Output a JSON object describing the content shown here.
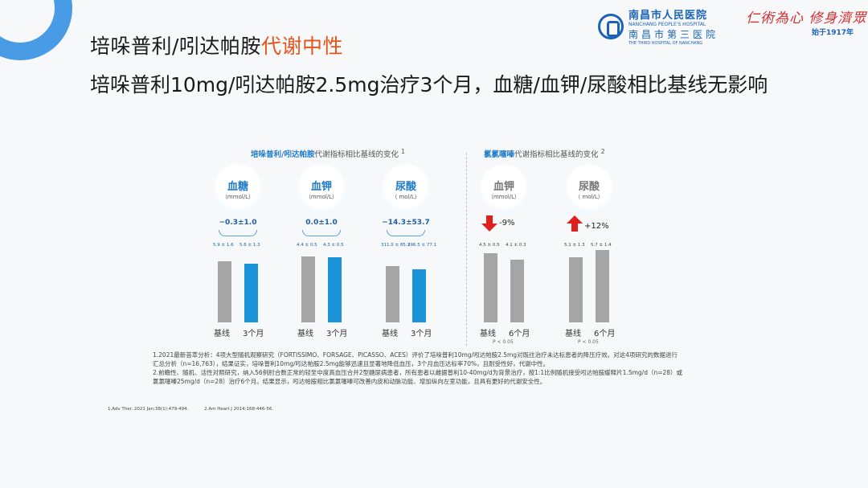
{
  "header": {
    "title_prefix": "培哚普利/吲达帕胺",
    "title_accent": "代谢中性",
    "subtitle": "培哚普利10mg/吲达帕胺2.5mg治疗3个月，血糖/血钾/尿酸相比基线无影响"
  },
  "logo": {
    "cn": "南昌市人民医院",
    "en": "NANCHANG PEOPLE'S HOSPITAL",
    "cn2": "南昌市第三医院",
    "en2": "THE THIRD HOSPITAL OF NANCHANG",
    "slogan": "仁術為心  修身濟眾",
    "since": "始于1917年"
  },
  "colors": {
    "accent": "#e8541b",
    "blue": "#1f7cc9",
    "baseline_bar": "#9c9c9c",
    "treated_bar": "#1a93d8",
    "up_arrow": "#e0201e",
    "down_arrow": "#e0201e"
  },
  "panel_left": {
    "title_bold": "培哚普利/吲达帕胺",
    "title_rest": "代谢指标相比基线的变化",
    "sup": "1"
  },
  "panel_right": {
    "title_bold": "氯氯噻嗪",
    "title_rest": "代谢指标相比基线的变化",
    "sup": "2"
  },
  "chart_data": [
    {
      "type": "bar",
      "name": "血糖",
      "unit": "（mmol/L）",
      "change": "−0.3±1.0",
      "categories": [
        "基线",
        "3个月"
      ],
      "value_labels": [
        "5.9 ± 1.6",
        "5.6 ± 1.3"
      ],
      "values": [
        5.9,
        5.6
      ]
    },
    {
      "type": "bar",
      "name": "血钾",
      "unit": "（mmol/L）",
      "change": "0.0±1.0",
      "categories": [
        "基线",
        "3个月"
      ],
      "value_labels": [
        "4.4 ± 0.5",
        "4.3 ± 0.5"
      ],
      "values": [
        4.4,
        4.3
      ]
    },
    {
      "type": "bar",
      "name": "尿酸",
      "unit": "（  mol/L）",
      "change": "−14.3±53.7",
      "categories": [
        "基线",
        "3个月"
      ],
      "value_labels": [
        "311.0 ± 85.3",
        "296.5 ± 77.1"
      ],
      "values": [
        311.0,
        296.5
      ]
    },
    {
      "type": "bar",
      "name": "血钾",
      "unit": "（mmol/L）",
      "change": "-9%",
      "change_direction": "down",
      "categories": [
        "基线",
        "6个月"
      ],
      "value_labels": [
        "4.5 ± 0.5",
        "4.1 ± 0.3"
      ],
      "values": [
        4.5,
        4.1
      ],
      "p_label": "P < 0.05"
    },
    {
      "type": "bar",
      "name": "尿酸",
      "unit": "（  mol/L）",
      "change": "+12%",
      "change_direction": "up",
      "categories": [
        "基线",
        "6个月"
      ],
      "value_labels": [
        "5.1 ± 1.3",
        "5.7 ± 1.4"
      ],
      "values": [
        5.1,
        5.7
      ],
      "p_label": "P < 0.05"
    }
  ],
  "notes": {
    "line1": "1.2021最新荟萃分析：4项大型随机观察研究（FORTISSIMO、FORSAGE、PICASSO、ACES）评价了培哚普利10mg/吲达帕胺2.5mg对既往治疗未达标患者的降压疗效。对这4项研究的数据进行汇总分析（n=16,763），结果证实，培哚普利10mg/吲达帕胺2.5mg能够迅速且显著地降低血压，3个月血压达标率70%，且耐受性好，代谢中性。",
    "line2": "2.前瞻性、随机、活性对照研究，纳入56例肘合数正常的轻至中度高血压合并2型糖尿病患者，所有患者以雌据普利10-40mg/d为背景治疗，按1:1比例随机接受吲达帕胺缓释片1.5mg/d（n=28）或氯氯噻嗪25mg/d（n=28）治疗6个月。结果显示，吲达帕胺相比氯氯噻嗪可改善内皮和动脉功能、增加纵向左室功能，且具有更好的代谢安全性。"
  },
  "refs": [
    "1.Adv Ther. 2021 Jan;38(1):479-494.",
    "2.Am Heart J 2014;168:446-56."
  ]
}
